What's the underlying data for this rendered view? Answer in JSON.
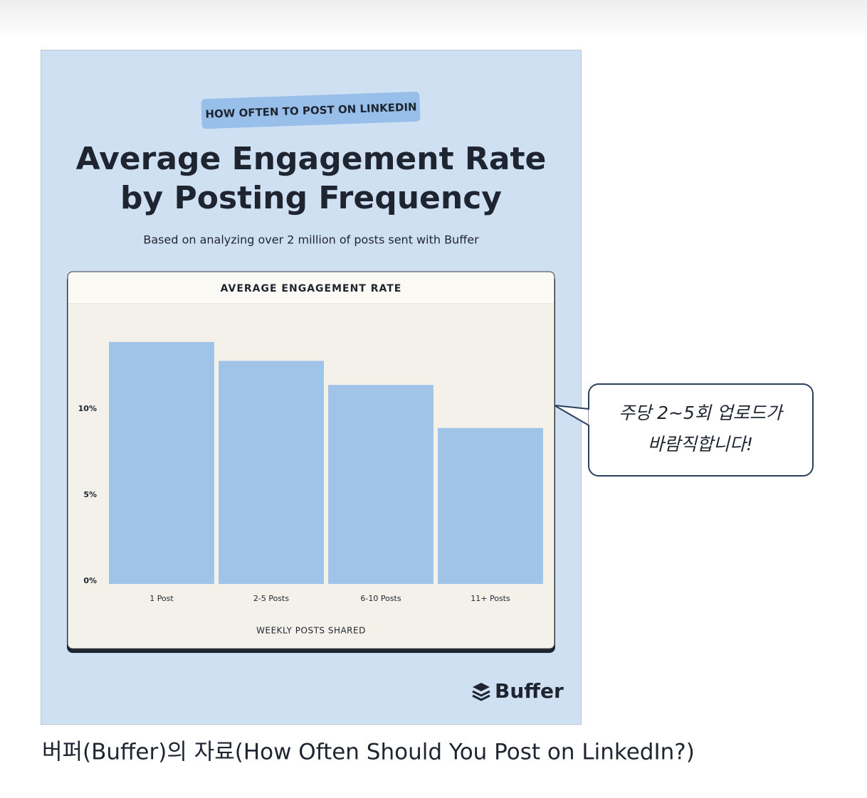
{
  "badge": "HOW OFTEN TO POST ON LINKEDIN",
  "callout": [
    "주당 2~5회 업로드가",
    "바람직합니다!"
  ],
  "brand": "Buffer",
  "caption": "버퍼(Buffer)의 자료(How Often Should You Post on LinkedIn?)",
  "chart_data": {
    "type": "bar",
    "title": [
      "Average Engagement Rate",
      "by Posting Frequency"
    ],
    "subtitle": "Based on analyzing over 2 million of posts sent with Buffer",
    "chart_title": "AVERAGE ENGAGEMENT RATE",
    "x_label": "WEEKLY POSTS SHARED",
    "categories": [
      "1 Post",
      "2-5 Posts",
      "6-10 Posts",
      "11+ Posts"
    ],
    "values": [
      13.9,
      12.8,
      11.4,
      8.9
    ],
    "color": "#a0c3e8",
    "ylim": [
      0,
      16
    ],
    "yticks": [
      {
        "value": 0,
        "label": "0%"
      },
      {
        "value": 5,
        "label": "5%"
      },
      {
        "value": 10,
        "label": "10%"
      }
    ],
    "grid": false
  }
}
